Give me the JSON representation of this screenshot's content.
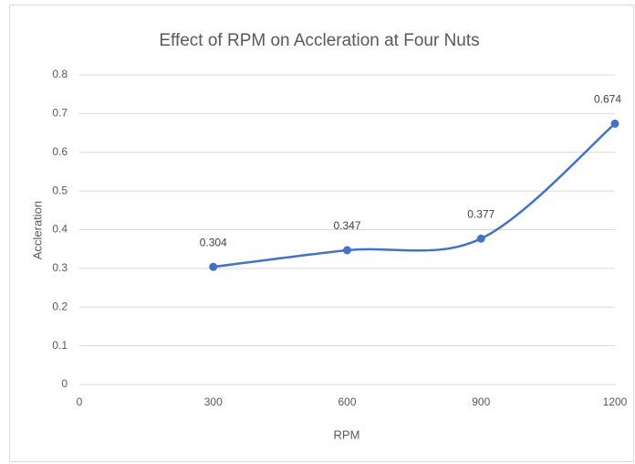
{
  "chart_data": {
    "type": "line",
    "title": "Effect of RPM on Accleration at Four Nuts",
    "x_label": "RPM",
    "y_label": "Accleration",
    "x": [
      300,
      600,
      900,
      1200
    ],
    "values": [
      0.304,
      0.347,
      0.377,
      0.674
    ],
    "color": "#4472c4",
    "smooth": true,
    "data_labels": true,
    "xlim": [
      0,
      1200
    ],
    "xticks": [
      0,
      300,
      600,
      900,
      1200
    ],
    "ylim": [
      0,
      0.8
    ],
    "yticks": [
      0,
      0.1,
      0.2,
      0.3,
      0.4,
      0.5,
      0.6,
      0.7,
      0.8
    ],
    "grid": true
  }
}
